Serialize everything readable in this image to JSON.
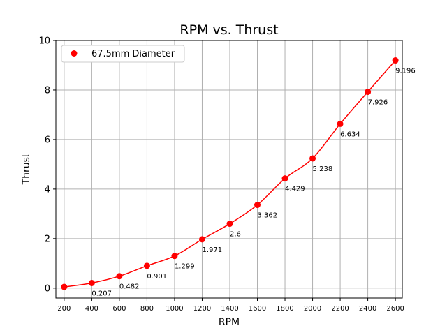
{
  "chart_data": {
    "type": "line",
    "title": "RPM vs. Thrust",
    "xlabel": "RPM",
    "ylabel": "Thrust",
    "xlim": [
      140,
      2650
    ],
    "ylim": [
      -0.4,
      10
    ],
    "xticks": [
      200,
      400,
      600,
      800,
      1000,
      1200,
      1400,
      1600,
      1800,
      2000,
      2200,
      2400,
      2600
    ],
    "yticks": [
      0,
      2,
      4,
      6,
      8,
      10
    ],
    "grid": true,
    "legend_position": "top-left",
    "series": [
      {
        "name": "67.5mm Diameter",
        "color": "#ff0000",
        "marker": "circle",
        "x": [
          200,
          400,
          600,
          800,
          1000,
          1200,
          1400,
          1600,
          1800,
          2000,
          2200,
          2400,
          2600
        ],
        "y": [
          0.05,
          0.207,
          0.482,
          0.901,
          1.299,
          1.971,
          2.6,
          3.362,
          4.429,
          5.238,
          6.634,
          7.926,
          9.196
        ],
        "labels": [
          "",
          "0.207",
          "0.482",
          "0.901",
          "1.299",
          "1.971",
          "2.6",
          "3.362",
          "4.429",
          "5.238",
          "6.634",
          "7.926",
          "9.196"
        ]
      }
    ]
  }
}
